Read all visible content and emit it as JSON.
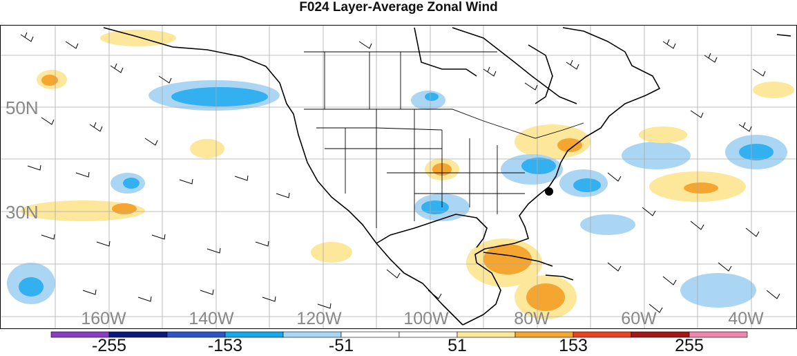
{
  "title": "F024 Layer-Average Zonal Wind",
  "map": {
    "lat_labels": [
      "50N",
      "30N"
    ],
    "lon_labels": [
      "160W",
      "140W",
      "120W",
      "100W",
      "80W",
      "60W",
      "40W"
    ]
  },
  "colorbar": {
    "colors": [
      "#8a3fc2",
      "#0b1a7a",
      "#2f55c4",
      "#17a8e8",
      "#a6d8f5",
      "#ffffff",
      "#ffffff",
      "#fde79a",
      "#f4a630",
      "#e8421e",
      "#a21818",
      "#ee87b0"
    ],
    "labels": [
      "-255",
      "-153",
      "-51",
      "51",
      "153",
      "255"
    ]
  },
  "fill_colors": {
    "light_blue": "#aad6f4",
    "mid_blue": "#33b0ef",
    "dark_blue": "#1c82d6",
    "light_orange": "#fde79a",
    "orange": "#f4a630",
    "red": "#e8421e"
  }
}
